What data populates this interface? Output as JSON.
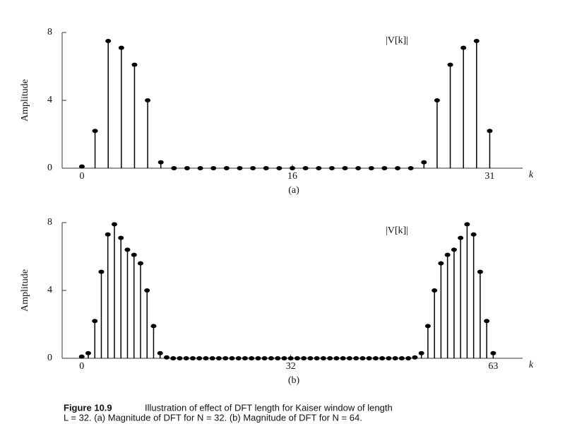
{
  "chart_data": [
    {
      "type": "stem",
      "label": "|V[k]|",
      "panel": "(a)",
      "ylabel": "Amplitude",
      "xlabel": "k",
      "color": "#000000",
      "x": [
        0,
        1,
        2,
        3,
        4,
        5,
        6,
        7,
        8,
        9,
        10,
        11,
        12,
        13,
        14,
        15,
        16,
        17,
        18,
        19,
        20,
        21,
        22,
        23,
        24,
        25,
        26,
        27,
        28,
        29,
        30,
        31
      ],
      "values": [
        0.1,
        2.2,
        7.5,
        7.1,
        6.1,
        4.0,
        0.35,
        0,
        0,
        0,
        0,
        0,
        0,
        0,
        0,
        0,
        0,
        0,
        0,
        0,
        0,
        0,
        0,
        0,
        0,
        0,
        0.35,
        4.0,
        6.1,
        7.1,
        7.5,
        2.2
      ],
      "xlim": [
        -1.5,
        33.5
      ],
      "xticks": [
        0,
        16,
        31
      ],
      "ylim": [
        0,
        8
      ],
      "yticks": [
        0,
        4,
        8
      ]
    },
    {
      "type": "stem",
      "label": "|V[k]|",
      "panel": "(b)",
      "ylabel": "Amplitude",
      "xlabel": "k",
      "color": "#000000",
      "x": [
        0,
        1,
        2,
        3,
        4,
        5,
        6,
        7,
        8,
        9,
        10,
        11,
        12,
        13,
        14,
        15,
        16,
        17,
        18,
        19,
        20,
        21,
        22,
        23,
        24,
        25,
        26,
        27,
        28,
        29,
        30,
        31,
        32,
        33,
        34,
        35,
        36,
        37,
        38,
        39,
        40,
        41,
        42,
        43,
        44,
        45,
        46,
        47,
        48,
        49,
        50,
        51,
        52,
        53,
        54,
        55,
        56,
        57,
        58,
        59,
        60,
        61,
        62,
        63
      ],
      "values": [
        0.1,
        0.3,
        2.2,
        5.1,
        7.3,
        7.9,
        7.1,
        6.4,
        6.1,
        5.6,
        4.0,
        1.9,
        0.3,
        0.05,
        0,
        0,
        0,
        0,
        0,
        0,
        0,
        0,
        0,
        0,
        0,
        0,
        0,
        0,
        0,
        0,
        0,
        0,
        0,
        0,
        0,
        0,
        0,
        0,
        0,
        0,
        0,
        0,
        0,
        0,
        0,
        0,
        0,
        0,
        0,
        0,
        0,
        0.05,
        0.3,
        1.9,
        4.0,
        5.6,
        6.1,
        6.4,
        7.1,
        7.9,
        7.3,
        5.1,
        2.2,
        0.3
      ],
      "xlim": [
        -3,
        67.5
      ],
      "xticks": [
        0,
        32,
        63
      ],
      "ylim": [
        0,
        8
      ],
      "yticks": [
        0,
        4,
        8
      ]
    }
  ],
  "caption": {
    "label": "Figure 10.9",
    "lines": [
      "Illustration of effect of DFT length for Kaiser window of length",
      "L = 32. (a) Magnitude of DFT for N = 32. (b) Magnitude of DFT for N = 64."
    ]
  }
}
